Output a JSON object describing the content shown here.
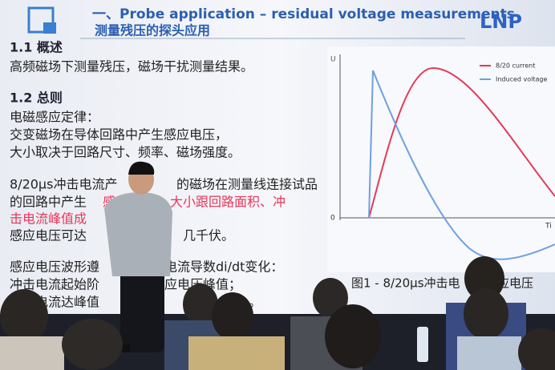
{
  "header": {
    "title": "一、Probe application – residual voltage measurements",
    "subtitle": "测量残压的探头应用",
    "logo": "LNP"
  },
  "sections": [
    {
      "heading": "1.1 概述",
      "lines": [
        [
          "高频磁场下测量残压，磁场干扰测量结果。"
        ]
      ]
    },
    {
      "heading": "1.2 总则",
      "lines": [
        [
          "电磁感应定律："
        ],
        [
          "交变磁场在导体回路中产生感应电压，"
        ],
        [
          "大小取决于回路尺寸、频率、磁场强度。"
        ],
        [
          "8/20μs冲击电流产",
          "的磁场在测量线连接试品"
        ],
        [
          "的回路中产生",
          "感",
          "压，大小跟回路面积、冲"
        ],
        [
          "击电流峰值成"
        ],
        [
          "感应电压可达",
          "几千伏。"
        ],
        [
          "感应电压波形遵",
          "电流导数di/dt变化："
        ],
        [
          "冲击电流起始阶",
          "应电压峰值；"
        ],
        [
          "击电流达峰值",
          "。"
        ]
      ]
    }
  ],
  "figure": {
    "y_label": "U",
    "zero": "0",
    "x_label": "Ti",
    "legend": [
      "8/20 current",
      "Induced voltage"
    ],
    "caption": [
      "图1 - 8/20μs冲击电",
      "应电压"
    ]
  }
}
